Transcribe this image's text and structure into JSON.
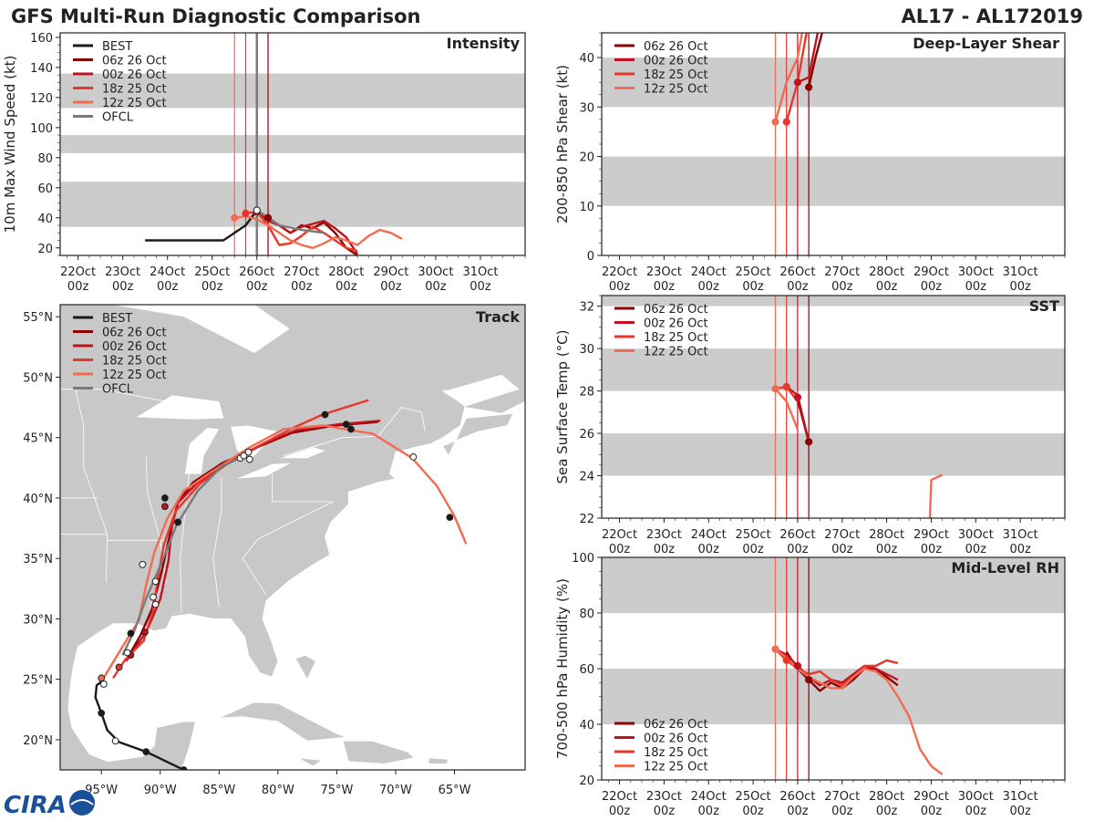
{
  "header": {
    "title": "GFS Multi-Run Diagnostic Comparison",
    "storm_id": "AL17 - AL172019",
    "logo_text": "CIRA"
  },
  "colors": {
    "best": "#1a1a1a",
    "ofcl": "#7a7a7a",
    "run_06z26": "#8b0000",
    "run_00z26": "#c0121f",
    "run_18z25": "#e8362a",
    "run_12z25": "#f26b52",
    "band": "#cccccc",
    "land": "#c8c8c8",
    "ocean": "#ffffff"
  },
  "time_axis": {
    "tick_days": [
      "22Oct",
      "23Oct",
      "24Oct",
      "25Oct",
      "26Oct",
      "27Oct",
      "28Oct",
      "29Oct",
      "30Oct",
      "31Oct"
    ],
    "tick_hour": "00z",
    "range_days": [
      21.6,
      32.0
    ],
    "run_times": [
      {
        "name": "06z 26 Oct",
        "t": 26.25,
        "color": "#8b0000"
      },
      {
        "name": "00z 26 Oct",
        "t": 26.0,
        "color": "#c0121f"
      },
      {
        "name": "18z 25 Oct",
        "t": 25.75,
        "color": "#e8362a"
      },
      {
        "name": "12z 25 Oct",
        "t": 25.5,
        "color": "#f26b52"
      }
    ],
    "ofcl_time": 26.0
  },
  "chart_data": [
    {
      "id": "intensity",
      "type": "line",
      "title": "Intensity",
      "xlabel": "",
      "ylabel": "10m Max Wind Speed (kt)",
      "ylim": [
        15,
        163
      ],
      "yticks": [
        20,
        40,
        60,
        80,
        100,
        120,
        140,
        160
      ],
      "bands": [
        [
          34,
          64
        ],
        [
          83,
          95
        ],
        [
          113,
          136
        ]
      ],
      "legend": "top-left",
      "series": [
        {
          "name": "BEST",
          "color": "#1a1a1a",
          "x": [
            23.5,
            24.0,
            24.5,
            25.0,
            25.25,
            25.5,
            25.75,
            26.0,
            26.25,
            26.5
          ],
          "y": [
            25,
            25,
            25,
            25,
            25,
            30,
            35,
            45,
            40,
            35
          ]
        },
        {
          "name": "06z 26 Oct",
          "color": "#8b0000",
          "x": [
            26.25,
            26.5,
            26.75,
            27.0,
            27.25,
            27.5,
            27.75,
            28.0,
            28.25
          ],
          "y": [
            40,
            35,
            30,
            35,
            33,
            37,
            30,
            20,
            15
          ]
        },
        {
          "name": "00z 26 Oct",
          "color": "#c0121f",
          "x": [
            26.0,
            26.25,
            26.5,
            26.75,
            27.0,
            27.25,
            27.5,
            27.75,
            28.0,
            28.25
          ],
          "y": [
            44,
            38,
            35,
            30,
            34,
            36,
            38,
            33,
            27,
            16
          ]
        },
        {
          "name": "18z 25 Oct",
          "color": "#e8362a",
          "x": [
            25.75,
            26.0,
            26.25,
            26.5,
            26.75,
            27.0,
            27.25,
            27.5,
            27.75,
            28.0,
            28.25
          ],
          "y": [
            43,
            44,
            35,
            22,
            23,
            28,
            34,
            30,
            25,
            20,
            18
          ]
        },
        {
          "name": "12z 25 Oct",
          "color": "#f26b52",
          "x": [
            25.5,
            25.75,
            26.0,
            26.25,
            26.5,
            26.75,
            27.0,
            27.25,
            27.5,
            27.75,
            28.0,
            28.25,
            28.5,
            28.75,
            29.0,
            29.25
          ],
          "y": [
            40,
            41,
            39,
            35,
            30,
            25,
            22,
            20,
            23,
            27,
            25,
            22,
            28,
            32,
            30,
            26
          ]
        },
        {
          "name": "OFCL",
          "color": "#7a7a7a",
          "x": [
            26.0,
            26.5,
            27.0,
            27.5
          ],
          "y": [
            45,
            35,
            32,
            30
          ]
        }
      ],
      "markers": [
        {
          "color": "#f26b52",
          "x": 25.5,
          "y": 40,
          "fill": "#f26b52"
        },
        {
          "color": "#e8362a",
          "x": 25.75,
          "y": 43,
          "fill": "#e8362a"
        },
        {
          "color": "#c0121f",
          "x": 26.0,
          "y": 44,
          "fill": "#c0121f"
        },
        {
          "color": "#8b0000",
          "x": 26.25,
          "y": 40,
          "fill": "#8b0000"
        },
        {
          "color": "#7a7a7a",
          "x": 26.0,
          "y": 45,
          "fill": "#ffffff"
        }
      ]
    },
    {
      "id": "shear",
      "type": "line",
      "title": "Deep-Layer Shear",
      "xlabel": "",
      "ylabel": "200-850 hPa Shear (kt)",
      "ylim": [
        0,
        45
      ],
      "yticks": [
        0,
        10,
        20,
        30,
        40
      ],
      "bands": [
        [
          10,
          20
        ],
        [
          30,
          40
        ]
      ],
      "legend": "top-left",
      "series": [
        {
          "name": "06z 26 Oct",
          "color": "#8b0000",
          "x": [
            26.25,
            26.4,
            26.55
          ],
          "y": [
            34,
            40,
            45
          ]
        },
        {
          "name": "00z 26 Oct",
          "color": "#c0121f",
          "x": [
            26.0,
            26.25,
            26.45
          ],
          "y": [
            35,
            36,
            45
          ]
        },
        {
          "name": "18z 25 Oct",
          "color": "#e8362a",
          "x": [
            25.75,
            26.0,
            26.2
          ],
          "y": [
            27,
            35,
            45
          ]
        },
        {
          "name": "12z 25 Oct",
          "color": "#f26b52",
          "x": [
            25.5,
            25.75,
            26.0,
            26.1
          ],
          "y": [
            27,
            35,
            40,
            45
          ]
        }
      ],
      "markers": [
        {
          "color": "#f26b52",
          "x": 25.5,
          "y": 27,
          "fill": "#f26b52"
        },
        {
          "color": "#e8362a",
          "x": 25.75,
          "y": 27,
          "fill": "#e8362a"
        },
        {
          "color": "#c0121f",
          "x": 26.0,
          "y": 35,
          "fill": "#c0121f"
        },
        {
          "color": "#8b0000",
          "x": 26.25,
          "y": 34,
          "fill": "#8b0000"
        }
      ]
    },
    {
      "id": "sst",
      "type": "line",
      "title": "SST",
      "xlabel": "",
      "ylabel": "Sea Surface Temp (°C)",
      "ylim": [
        22,
        32.5
      ],
      "yticks": [
        22,
        24,
        26,
        28,
        30,
        32
      ],
      "bands": [
        [
          24,
          26
        ],
        [
          28,
          30
        ],
        [
          32,
          32.5
        ]
      ],
      "legend": "top-left",
      "series": [
        {
          "name": "06z 26 Oct",
          "color": "#8b0000",
          "x": [
            26.0,
            26.25
          ],
          "y": [
            27.6,
            25.6
          ]
        },
        {
          "name": "00z 26 Oct",
          "color": "#c0121f",
          "x": [
            25.75,
            26.0,
            26.25
          ],
          "y": [
            28.2,
            27.8,
            25.6
          ]
        },
        {
          "name": "18z 25 Oct",
          "color": "#e8362a",
          "x": [
            25.5,
            25.75,
            26.0
          ],
          "y": [
            28.1,
            28.2,
            27.5
          ]
        },
        {
          "name": "12z 25 Oct",
          "color": "#f26b52",
          "x": [
            25.5,
            25.75,
            26.0
          ],
          "y": [
            28.1,
            27.5,
            26.2
          ]
        },
        {
          "name": "12z 25 Oct (late)",
          "color": "#f26b52",
          "x": [
            28.97,
            29.0,
            29.25
          ],
          "y": [
            22,
            23.8,
            24.05
          ]
        }
      ],
      "markers": [
        {
          "color": "#f26b52",
          "x": 25.5,
          "y": 28.1,
          "fill": "#f26b52"
        },
        {
          "color": "#e8362a",
          "x": 25.75,
          "y": 28.2,
          "fill": "#e8362a"
        },
        {
          "color": "#c0121f",
          "x": 26.0,
          "y": 27.7,
          "fill": "#c0121f"
        },
        {
          "color": "#8b0000",
          "x": 26.25,
          "y": 25.6,
          "fill": "#8b0000"
        }
      ]
    },
    {
      "id": "rh",
      "type": "line",
      "title": "Mid-Level RH",
      "xlabel": "",
      "ylabel": "700-500 hPa Humidity (%)",
      "ylim": [
        20,
        100
      ],
      "yticks": [
        20,
        40,
        60,
        80,
        100
      ],
      "bands": [
        [
          40,
          60
        ],
        [
          80,
          100
        ]
      ],
      "legend": "bottom-left",
      "series": [
        {
          "name": "06z 26 Oct",
          "color": "#8b0000",
          "x": [
            25.75,
            26.0,
            26.25,
            26.5,
            26.75,
            27.0,
            27.25,
            27.5,
            27.75,
            28.0,
            28.25
          ],
          "y": [
            66,
            60,
            56,
            52,
            55,
            53,
            56,
            60,
            60,
            57,
            54
          ]
        },
        {
          "name": "00z 26 Oct",
          "color": "#c0121f",
          "x": [
            25.5,
            25.75,
            26.0,
            26.25,
            26.5,
            26.75,
            27.0,
            27.25,
            27.5,
            27.75,
            28.0,
            28.25
          ],
          "y": [
            67,
            65,
            61,
            57,
            54,
            56,
            55,
            58,
            61,
            60,
            58,
            56
          ]
        },
        {
          "name": "18z 25 Oct",
          "color": "#e8362a",
          "x": [
            25.5,
            25.75,
            26.0,
            26.25,
            26.5,
            26.75,
            27.0,
            27.25,
            27.5,
            27.75,
            28.0,
            28.25
          ],
          "y": [
            67,
            63,
            60,
            58,
            59,
            56,
            54,
            57,
            61,
            61,
            63,
            62
          ]
        },
        {
          "name": "12z 25 Oct",
          "color": "#f26b52",
          "x": [
            25.5,
            25.75,
            26.0,
            26.25,
            26.5,
            26.75,
            27.0,
            27.25,
            27.5,
            27.75,
            28.0,
            28.25,
            28.5,
            28.75,
            29.0,
            29.25
          ],
          "y": [
            67,
            64,
            60,
            57,
            55,
            53,
            53,
            57,
            60,
            59,
            56,
            50,
            43,
            31,
            25,
            22
          ]
        }
      ],
      "markers": [
        {
          "color": "#f26b52",
          "x": 25.5,
          "y": 67,
          "fill": "#f26b52"
        },
        {
          "color": "#e8362a",
          "x": 25.75,
          "y": 63,
          "fill": "#e8362a"
        },
        {
          "color": "#c0121f",
          "x": 26.0,
          "y": 61,
          "fill": "#c0121f"
        },
        {
          "color": "#8b0000",
          "x": 26.25,
          "y": 56,
          "fill": "#8b0000"
        }
      ]
    },
    {
      "id": "track",
      "type": "scatter",
      "title": "Track",
      "xlabel": "",
      "ylabel": "",
      "xlim": [
        -98.5,
        -59.0
      ],
      "ylim": [
        17.5,
        56.0
      ],
      "xticks": [
        -95,
        -90,
        -85,
        -80,
        -75,
        -70,
        -65
      ],
      "xtick_labels": [
        "95°W",
        "90°W",
        "85°W",
        "80°W",
        "75°W",
        "70°W",
        "65°W"
      ],
      "yticks": [
        20,
        25,
        30,
        35,
        40,
        45,
        50,
        55
      ],
      "ytick_labels": [
        "20°N",
        "25°N",
        "30°N",
        "35°N",
        "40°N",
        "45°N",
        "50°N",
        "55°N"
      ],
      "legend": "top-left",
      "series": [
        {
          "name": "BEST",
          "color": "#1a1a1a",
          "lon": [
            -88.2,
            -89.5,
            -91.2,
            -93.5,
            -94.5,
            -95.0,
            -95.5,
            -95.4,
            -95.0
          ],
          "lat": [
            17.6,
            18.2,
            19.0,
            19.8,
            20.8,
            22.2,
            23.5,
            24.5,
            24.8
          ]
        },
        {
          "name": "06z 26 Oct",
          "color": "#8b0000",
          "lon": [
            -92.7,
            -91.7,
            -90.7,
            -89.9,
            -89.2,
            -88.5,
            -87.2,
            -84.7,
            -82.0,
            -78.8,
            -75.2,
            -71.5
          ],
          "lat": [
            26.9,
            28.6,
            30.8,
            33.8,
            36.9,
            39.6,
            41.3,
            42.9,
            44.1,
            45.4,
            46.0,
            46.3
          ]
        },
        {
          "name": "00z 26 Oct",
          "color": "#c0121f",
          "lon": [
            -92.9,
            -91.2,
            -90.0,
            -89.3,
            -89.0,
            -88.5,
            -86.8,
            -84.0,
            -81.2,
            -78.5,
            -74.8,
            -71.3
          ],
          "lat": [
            26.5,
            28.9,
            31.6,
            34.8,
            37.8,
            39.6,
            41.3,
            43.0,
            44.5,
            45.6,
            46.1,
            46.4
          ]
        },
        {
          "name": "18z 25 Oct",
          "color": "#e8362a",
          "lon": [
            -94.0,
            -93.0,
            -91.4,
            -90.6,
            -90.2,
            -89.7,
            -88.7,
            -86.6,
            -83.8,
            -81.1,
            -78.5,
            -76.2,
            -72.3
          ],
          "lat": [
            25.1,
            26.6,
            28.2,
            30.7,
            33.4,
            36.1,
            38.9,
            41.2,
            43.2,
            44.6,
            45.9,
            46.9,
            48.1
          ]
        },
        {
          "name": "12z 25 Oct",
          "color": "#f26b52",
          "lon": [
            -95.0,
            -93.2,
            -91.8,
            -91.2,
            -90.5,
            -89.4,
            -88.0,
            -85.6,
            -82.4,
            -79.5,
            -76.1,
            -71.9,
            -68.6,
            -66.5,
            -65.0,
            -64.0
          ],
          "lat": [
            24.8,
            27.7,
            29.9,
            32.8,
            35.5,
            38.3,
            40.6,
            42.2,
            44.2,
            45.7,
            46.0,
            45.3,
            43.3,
            41.0,
            38.5,
            36.2
          ]
        },
        {
          "name": "OFCL",
          "color": "#7a7a7a",
          "lon": [
            -93.2,
            -92.2,
            -91.2,
            -89.9,
            -88.6,
            -86.8,
            -84.8,
            -83.0
          ],
          "lat": [
            27.0,
            29.0,
            31.7,
            34.6,
            37.8,
            40.6,
            42.6,
            43.4
          ]
        }
      ],
      "points": [
        {
          "lon": -88.0,
          "lat": 17.5,
          "fill": "#1a1a1a"
        },
        {
          "lon": -91.2,
          "lat": 19.0,
          "fill": "#1a1a1a"
        },
        {
          "lon": -93.8,
          "lat": 19.9,
          "fill": "#ffffff"
        },
        {
          "lon": -95.0,
          "lat": 22.2,
          "fill": "#1a1a1a"
        },
        {
          "lon": -94.8,
          "lat": 24.6,
          "fill": "#ffffff"
        },
        {
          "lon": -95.0,
          "lat": 25.1,
          "fill": "#f26b52"
        },
        {
          "lon": -93.5,
          "lat": 26.0,
          "fill": "#e8362a"
        },
        {
          "lon": -92.5,
          "lat": 27.0,
          "fill": "#c0121f"
        },
        {
          "lon": -92.8,
          "lat": 27.2,
          "fill": "#ffffff"
        },
        {
          "lon": -92.5,
          "lat": 28.8,
          "fill": "#1a1a1a"
        },
        {
          "lon": -91.3,
          "lat": 28.9,
          "fill": "#c0121f"
        },
        {
          "lon": -90.4,
          "lat": 31.2,
          "fill": "#ffffff"
        },
        {
          "lon": -90.6,
          "lat": 31.8,
          "fill": "#ffffff"
        },
        {
          "lon": -90.4,
          "lat": 33.1,
          "fill": "#ffffff"
        },
        {
          "lon": -91.5,
          "lat": 34.5,
          "fill": "#ffffff"
        },
        {
          "lon": -88.5,
          "lat": 38.0,
          "fill": "#1a1a1a"
        },
        {
          "lon": -89.6,
          "lat": 39.3,
          "fill": "#c0121f"
        },
        {
          "lon": -89.6,
          "lat": 40.0,
          "fill": "#1a1a1a"
        },
        {
          "lon": -83.2,
          "lat": 43.3,
          "fill": "#ffffff"
        },
        {
          "lon": -82.9,
          "lat": 43.5,
          "fill": "#ffffff"
        },
        {
          "lon": -82.5,
          "lat": 43.8,
          "fill": "#ffffff"
        },
        {
          "lon": -82.4,
          "lat": 43.2,
          "fill": "#ffffff"
        },
        {
          "lon": -76.0,
          "lat": 46.9,
          "fill": "#1a1a1a"
        },
        {
          "lon": -74.2,
          "lat": 46.1,
          "fill": "#1a1a1a"
        },
        {
          "lon": -73.8,
          "lat": 45.7,
          "fill": "#1a1a1a"
        },
        {
          "lon": -68.5,
          "lat": 43.4,
          "fill": "#ffffff"
        },
        {
          "lon": -65.4,
          "lat": 38.4,
          "fill": "#1a1a1a"
        }
      ]
    }
  ]
}
